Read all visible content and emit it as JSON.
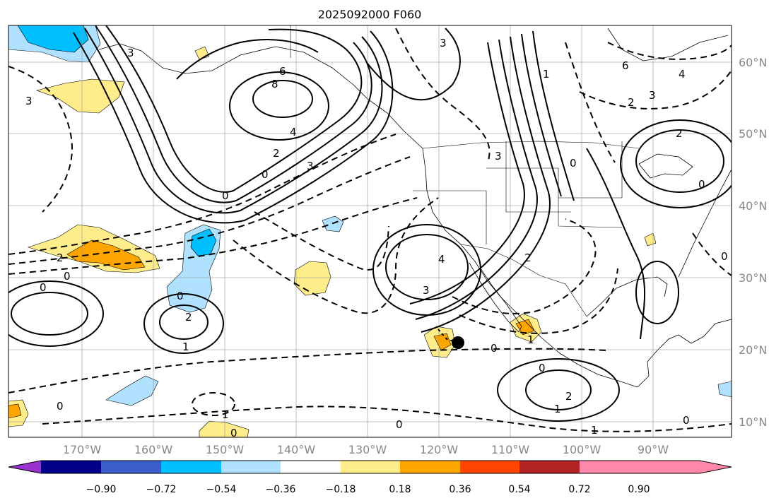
{
  "title": "2025092000 F060",
  "map": {
    "lat_labels": [
      "60°N",
      "50°N",
      "40°N",
      "30°N",
      "20°N",
      "10°N"
    ],
    "lon_labels": [
      "170°W",
      "160°W",
      "150°W",
      "140°W",
      "130°W",
      "120°W",
      "110°W",
      "100°W",
      "90°W"
    ]
  },
  "colorbar": {
    "colors": [
      "#9a32cd",
      "#00008b",
      "#3a5fcd",
      "#00bfff",
      "#b0e2ff",
      "#ffffff",
      "#ffec8b",
      "#ffa500",
      "#ff4500",
      "#b22222",
      "#ff88aa"
    ],
    "tick_labels": [
      "−0.90",
      "−0.72",
      "−0.54",
      "−0.36",
      "−0.18",
      "0.18",
      "0.36",
      "0.54",
      "0.72",
      "0.90"
    ]
  },
  "contour_labels": {
    "label_0": "0",
    "label_1": "1",
    "label_2": "2",
    "label_3": "3",
    "label_4": "4",
    "label_6": "6",
    "label_8": "8"
  }
}
